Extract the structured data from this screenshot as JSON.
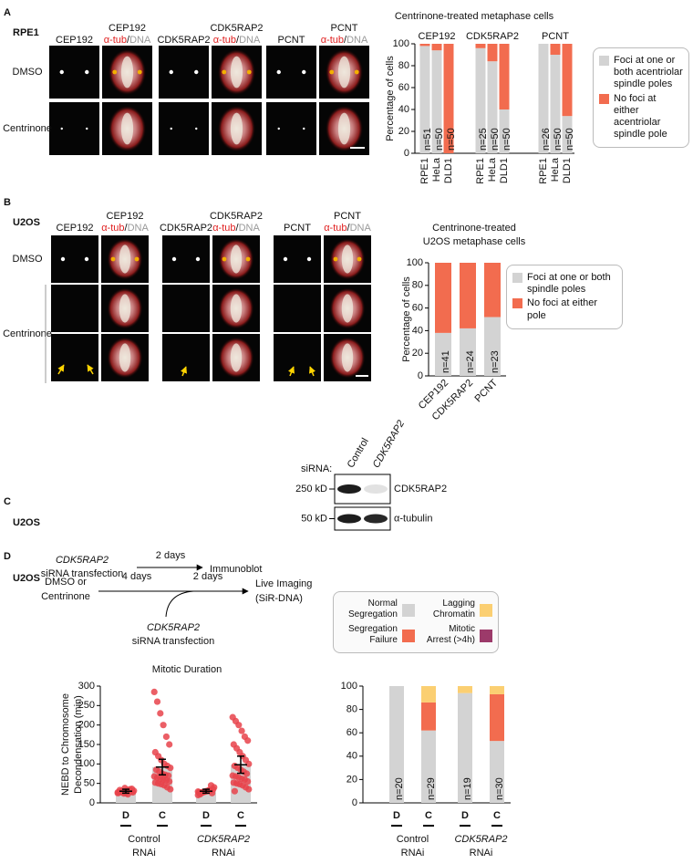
{
  "panel_a": {
    "letter": "A",
    "cell_line": "RPE1",
    "image_rows": [
      "DMSO",
      "Centrinone"
    ],
    "markers": [
      "CEP192",
      "CDK5RAP2",
      "PCNT"
    ],
    "merge_suffix": [
      "α-tub",
      "/",
      "DNA"
    ]
  },
  "panel_b": {
    "letter": "B",
    "cell_line": "U2OS",
    "image_rows": [
      "DMSO",
      "Centrinone"
    ],
    "markers": [
      "CEP192",
      "CDK5RAP2",
      "PCNT"
    ],
    "merge_suffix": [
      "α-tub",
      "/",
      "DNA"
    ]
  },
  "panel_c": {
    "letter": "C",
    "cell_line": "U2OS",
    "gene": "CDK5RAP2",
    "step": "siRNA transfection",
    "duration": "2 days",
    "readout": "Immunoblot",
    "blot": {
      "heading": "siRNA:",
      "lanes": [
        "Control",
        "CDK5RAP2"
      ],
      "bands": [
        {
          "size": "250 kD",
          "label": "CDK5RAP2"
        },
        {
          "size": "50 kD",
          "label": "α-tubulin"
        }
      ]
    }
  },
  "panel_d": {
    "letter": "D",
    "cell_line": "U2OS",
    "treatment": [
      "DMSO or",
      "Centrinone"
    ],
    "durations": [
      "4 days",
      "2 days"
    ],
    "gene": "CDK5RAP2",
    "step": "siRNA transfection",
    "readout": [
      "Live Imaging",
      "(SiR-DNA)"
    ]
  },
  "chart_data": [
    {
      "type": "stacked_bar",
      "title": "Centrinone-treated metaphase cells",
      "y_label": "Percentage of cells",
      "categories": [
        "RPE1",
        "HeLa",
        "DLD1",
        "RPE1",
        "HeLa",
        "DLD1",
        "RPE1",
        "HeLa",
        "DLD1"
      ],
      "groups": [
        "CEP192",
        "CDK5RAP2",
        "PCNT"
      ],
      "bar_labels": [
        "n=51",
        "n=50",
        "n=50",
        "n=25",
        "n=50",
        "n=50",
        "n=26",
        "n=50",
        "n=50"
      ],
      "series": [
        {
          "name": "Foci at one or both acentriolar spindle poles",
          "color": "#d3d3d3",
          "values": [
            98,
            94,
            0,
            96,
            84,
            40,
            100,
            90,
            34
          ]
        },
        {
          "name": "No foci at either acentriolar spindle pole",
          "color": "#f26c4f",
          "values": [
            2,
            6,
            100,
            4,
            16,
            60,
            0,
            10,
            66
          ]
        }
      ],
      "ylim": [
        0,
        100
      ],
      "yticks": [
        0,
        20,
        40,
        60,
        80,
        100
      ]
    },
    {
      "type": "stacked_bar",
      "title": [
        "Centrinone-treated",
        "U2OS metaphase cells"
      ],
      "y_label": "Percentage of cells",
      "categories": [
        "CEP192",
        "CDK5RAP2",
        "PCNT"
      ],
      "bar_labels": [
        "n=41",
        "n=24",
        "n=23"
      ],
      "series": [
        {
          "name": "Foci at one or both spindle poles",
          "color": "#d3d3d3",
          "values": [
            38,
            42,
            52
          ]
        },
        {
          "name": "No foci at either pole",
          "color": "#f26c4f",
          "values": [
            62,
            58,
            48
          ]
        }
      ],
      "ylim": [
        0,
        100
      ],
      "yticks": [
        0,
        20,
        40,
        60,
        80,
        100
      ]
    },
    {
      "type": "bar_dots",
      "title": "Mitotic Duration",
      "y_label": [
        "NEBD to Chromosome",
        "Decondensation (min)"
      ],
      "categories": [
        "D",
        "C",
        "D",
        "C"
      ],
      "category_colors": [
        "#111111",
        "#e02020",
        "#111111",
        "#e02020"
      ],
      "groups": [
        [
          "Control",
          "RNAi"
        ],
        [
          "CDK5RAP2",
          "RNAi"
        ]
      ],
      "values": [
        30,
        92,
        30,
        98
      ],
      "errors": [
        5,
        20,
        5,
        22
      ],
      "color": "#d3d3d3",
      "point_color": "#e8434b",
      "points": [
        [
          25,
          28,
          30,
          32,
          35,
          27,
          26,
          30,
          38,
          22,
          29,
          31,
          33,
          28,
          25,
          30,
          36,
          27,
          29,
          24
        ],
        [
          285,
          260,
          230,
          200,
          170,
          150,
          130,
          120,
          110,
          100,
          95,
          90,
          85,
          80,
          75,
          72,
          70,
          68,
          65,
          62,
          60,
          58,
          55,
          52,
          50,
          48,
          45,
          40,
          35
        ],
        [
          20,
          25,
          28,
          30,
          32,
          35,
          27,
          26,
          29,
          31,
          45,
          40,
          22,
          28,
          30,
          33,
          25,
          29,
          27
        ],
        [
          220,
          210,
          200,
          185,
          170,
          160,
          150,
          140,
          130,
          120,
          110,
          100,
          95,
          90,
          85,
          80,
          75,
          70,
          68,
          65,
          62,
          60,
          55,
          52,
          50,
          48,
          45,
          40,
          35,
          30
        ]
      ],
      "ylim": [
        0,
        300
      ],
      "yticks": [
        0,
        50,
        100,
        150,
        200,
        250,
        300
      ]
    },
    {
      "type": "stacked_bar",
      "categories": [
        "D",
        "C",
        "D",
        "C"
      ],
      "category_colors": [
        "#111111",
        "#e02020",
        "#111111",
        "#e02020"
      ],
      "groups": [
        [
          "Control",
          "RNAi"
        ],
        [
          "CDK5RAP2",
          "RNAi"
        ]
      ],
      "bar_labels": [
        "n=20",
        "n=29",
        "n=19",
        "n=30"
      ],
      "series": [
        {
          "name": "Normal Segregation",
          "color": "#d3d3d3",
          "values": [
            100,
            62,
            94,
            53
          ]
        },
        {
          "name": "Segregation Failure",
          "color": "#f26c4f",
          "values": [
            0,
            24,
            0,
            40
          ]
        },
        {
          "name": "Lagging Chromatin",
          "color": "#fbcf72",
          "values": [
            0,
            14,
            6,
            7
          ]
        },
        {
          "name": "Mitotic Arrest (>4h)",
          "color": "#9c3a6a",
          "values": [
            0,
            0,
            0,
            0
          ]
        }
      ],
      "ylim": [
        0,
        100
      ],
      "yticks": [
        0,
        20,
        40,
        60,
        80,
        100
      ]
    }
  ]
}
